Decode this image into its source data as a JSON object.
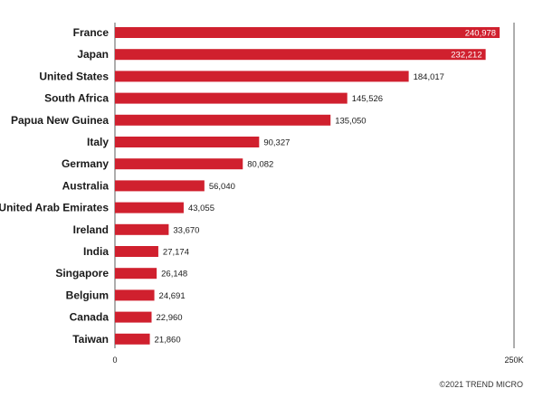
{
  "chart_data": {
    "type": "bar",
    "orientation": "horizontal",
    "categories": [
      "France",
      "Japan",
      "United States",
      "South Africa",
      "Papua New Guinea",
      "Italy",
      "Germany",
      "Australia",
      "United Arab Emirates",
      "Ireland",
      "India",
      "Singapore",
      "Belgium",
      "Canada",
      "Taiwan"
    ],
    "values": [
      240978,
      232212,
      184017,
      145526,
      135050,
      90327,
      80082,
      56040,
      43055,
      33670,
      27174,
      26148,
      24691,
      22960,
      21860
    ],
    "value_labels": [
      "240,978",
      "232,212",
      "184,017",
      "145,526",
      "135,050",
      "90,327",
      "80,082",
      "56,040",
      "43,055",
      "33,670",
      "27,174",
      "26,148",
      "24,691",
      "22,960",
      "21,860"
    ],
    "xlim": [
      0,
      250000
    ],
    "tick_labels": [
      "0",
      "250K"
    ],
    "bar_color": "#d0202e",
    "grid": false,
    "legend": "none"
  },
  "footer": {
    "copyright": "©2021 TREND MICRO"
  }
}
